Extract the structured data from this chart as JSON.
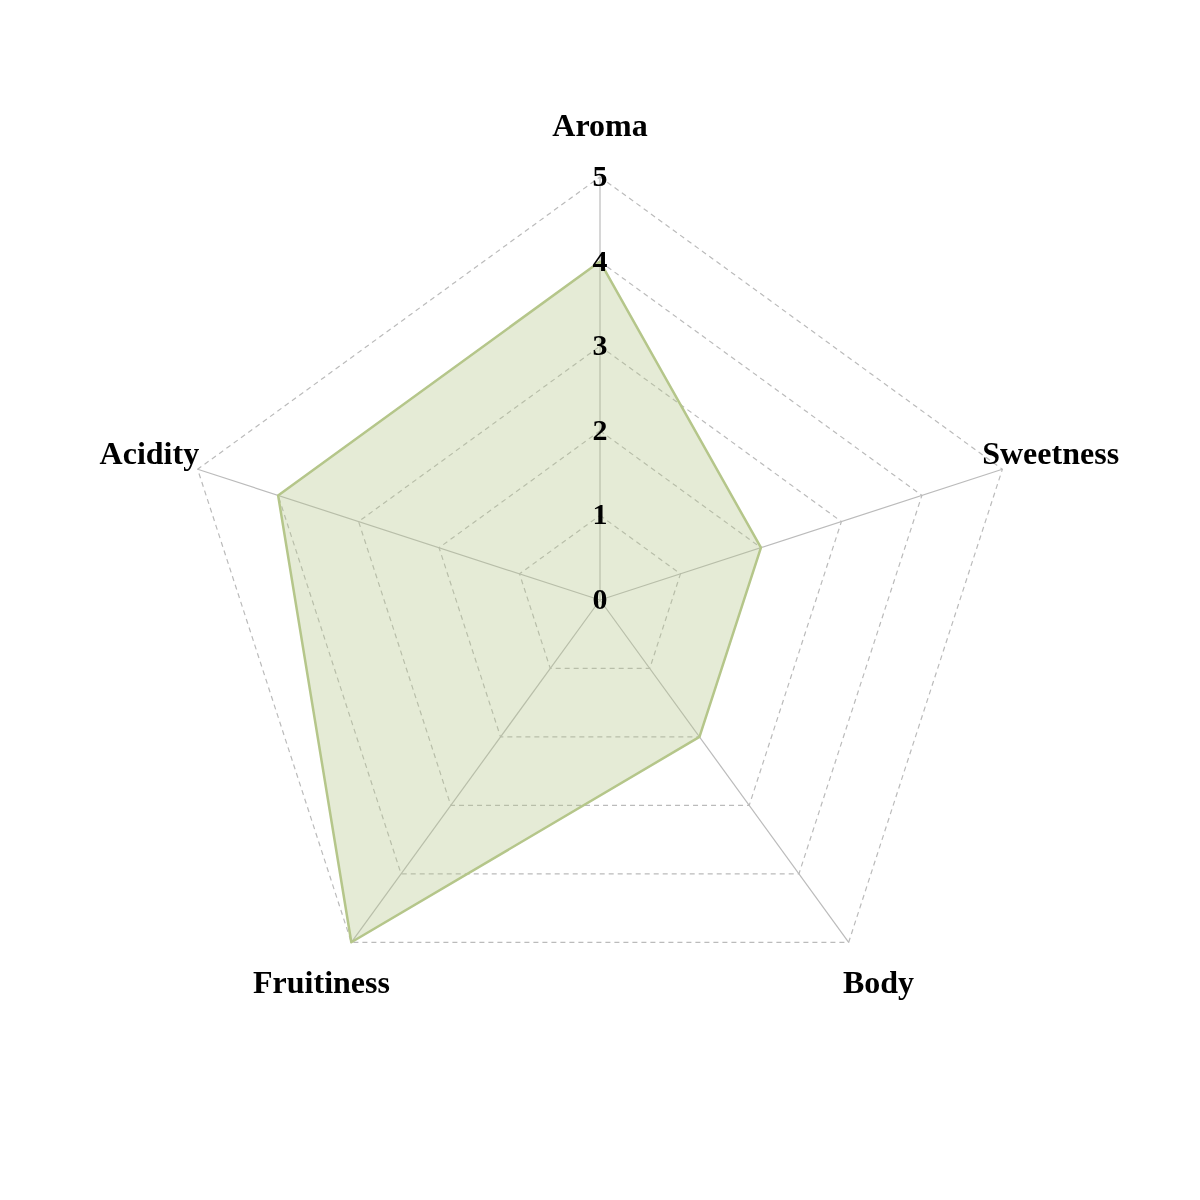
{
  "chart_data": {
    "type": "radar",
    "categories": [
      "Aroma",
      "Sweetness",
      "Body",
      "Fruitiness",
      "Acidity"
    ],
    "series": [
      {
        "color": "#b5c68a",
        "values": [
          4,
          2,
          2,
          5,
          4
        ]
      }
    ],
    "ylim": [
      0,
      5
    ],
    "yticks": [
      0,
      1,
      2,
      3,
      4,
      5
    ],
    "grid": true
  }
}
